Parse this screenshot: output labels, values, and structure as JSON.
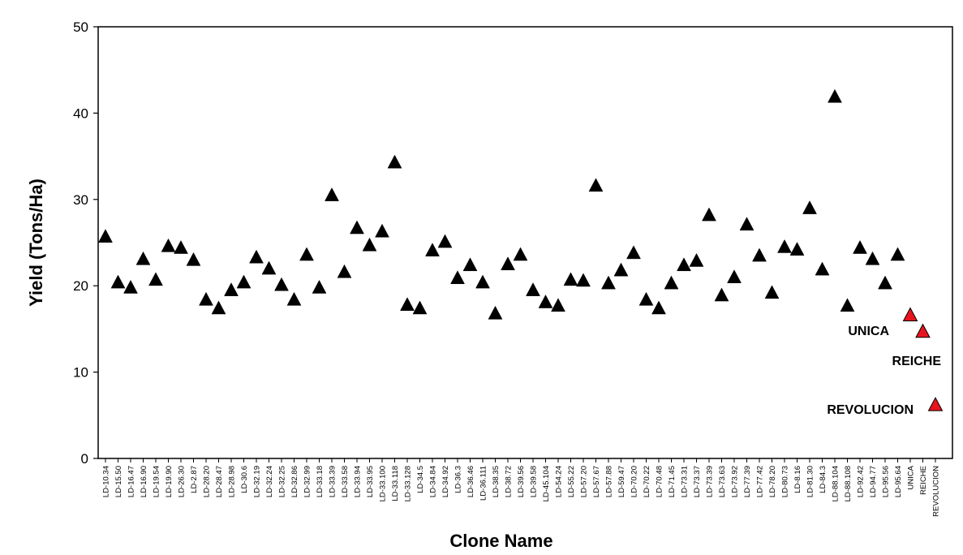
{
  "chart_data": {
    "type": "scatter",
    "title": "",
    "xlabel": "Clone Name",
    "ylabel": "Yield (Tons/Ha)",
    "ylim": [
      0,
      50
    ],
    "yticks": [
      0,
      10,
      20,
      30,
      40,
      50
    ],
    "grid": false,
    "marker": "triangle",
    "marker_color": "#000000",
    "highlight_color": "#e8141e",
    "categories": [
      "LD-10.34",
      "LD-15.50",
      "LD-16.47",
      "LD-16.90",
      "LD-19.54",
      "LD-19.90",
      "LD-26.30",
      "LD-2.87",
      "LD-28.20",
      "LD-28.47",
      "LD-28.98",
      "LD-30.6",
      "LD-32.19",
      "LD-32.24",
      "LD-32.25",
      "LD-32.86",
      "LD-32.99",
      "LD-33.18",
      "LD-33.39",
      "LD-33.58",
      "LD-33.94",
      "LD-33.95",
      "LD-33.100",
      "LD-33.118",
      "LD-33.128",
      "LD-34.5",
      "LD-34.84",
      "LD-34.92",
      "LD-36.3",
      "LD-36.46",
      "LD-36.111",
      "LD-38.35",
      "LD-38.72",
      "LD-39.56",
      "LD-39.58",
      "LD-45.104",
      "LD-54.24",
      "LD-55.22",
      "LD-57.20",
      "LD-57.67",
      "LD-57.88",
      "LD-59.47",
      "LD-70.20",
      "LD-70.22",
      "LD-70.48",
      "LD-71.45",
      "LD-73.31",
      "LD-73.37",
      "LD-73.39",
      "LD-73.63",
      "LD-73.92",
      "LD-77.39",
      "LD-77.42",
      "LD-78.20",
      "LD-80.73",
      "LD-8.16",
      "LD-81.30",
      "LD-84.3",
      "LD-88.104",
      "LD-88.108",
      "LD-92.42",
      "LD-94.77",
      "LD-95.56",
      "LD-95.64",
      "UNICA",
      "REICHE",
      "REVOLUCION"
    ],
    "values": [
      25.6,
      20.3,
      19.7,
      23.0,
      20.6,
      24.5,
      24.3,
      22.9,
      18.3,
      17.3,
      19.4,
      20.3,
      23.2,
      21.9,
      20.0,
      18.3,
      23.5,
      19.7,
      30.4,
      21.5,
      26.6,
      24.6,
      26.2,
      34.2,
      17.7,
      17.3,
      24.0,
      25.0,
      20.8,
      22.3,
      20.3,
      16.7,
      22.4,
      23.5,
      19.4,
      18.0,
      17.6,
      20.6,
      20.5,
      31.5,
      20.2,
      21.7,
      23.7,
      18.3,
      17.3,
      20.2,
      22.3,
      22.8,
      28.1,
      18.8,
      20.9,
      27.0,
      23.4,
      19.1,
      24.4,
      24.1,
      28.9,
      21.8,
      41.8,
      17.6,
      24.3,
      23.0,
      20.2,
      23.5,
      16.5,
      14.6,
      6.1
    ],
    "highlighted": [
      "UNICA",
      "REICHE",
      "REVOLUCION"
    ],
    "annotations": [
      "UNICA",
      "REICHE",
      "REVOLUCION"
    ]
  }
}
